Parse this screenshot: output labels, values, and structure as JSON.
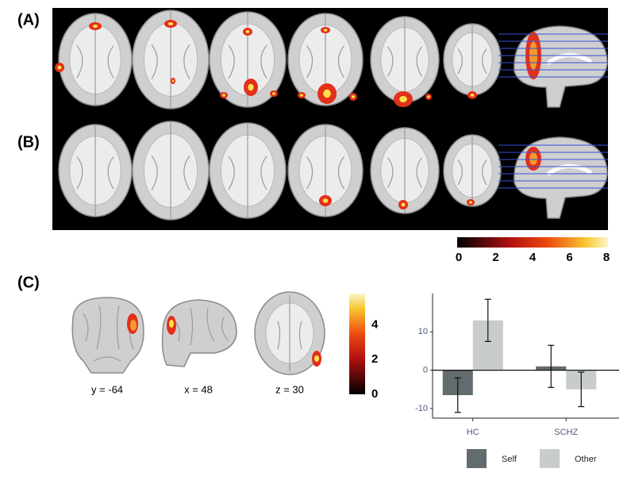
{
  "panels": {
    "a": "(A)",
    "b": "(B)",
    "c": "(C)"
  },
  "slice_labels": [
    "y = -64",
    "x = 48",
    "z = 30"
  ],
  "colorbar_top": {
    "lim": [
      0,
      8
    ],
    "ticks": [
      0,
      2,
      4,
      6,
      8
    ]
  },
  "colorbar_c": {
    "lim": [
      0,
      5.8
    ],
    "ticks": [
      0,
      2,
      4
    ]
  },
  "chart_data": {
    "type": "bar",
    "categories": [
      "HC",
      "SCHZ"
    ],
    "series": [
      {
        "name": "Self",
        "color": "#626b6d",
        "values": [
          -6.5,
          1
        ],
        "errors": [
          4.5,
          5.5
        ]
      },
      {
        "name": "Other",
        "color": "#c9cdca",
        "values": [
          13,
          -5
        ],
        "errors": [
          5.5,
          4.5
        ]
      }
    ],
    "ylim": [
      -12.5,
      20
    ],
    "yticks": [
      -10,
      0,
      10
    ]
  }
}
